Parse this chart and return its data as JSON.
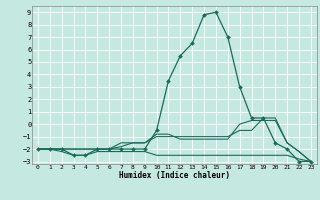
{
  "xlabel": "Humidex (Indice chaleur)",
  "bg_color": "#c5e8e0",
  "grid_color": "#ffffff",
  "line_color": "#1a6b5a",
  "xlim": [
    -0.5,
    23.5
  ],
  "ylim": [
    -3.2,
    9.5
  ],
  "xticks": [
    0,
    1,
    2,
    3,
    4,
    5,
    6,
    7,
    8,
    9,
    10,
    11,
    12,
    13,
    14,
    15,
    16,
    17,
    18,
    19,
    20,
    21,
    22,
    23
  ],
  "yticks": [
    -3,
    -2,
    -1,
    0,
    1,
    2,
    3,
    4,
    5,
    6,
    7,
    8,
    9
  ],
  "lines": [
    {
      "x": [
        0,
        1,
        2,
        3,
        4,
        5,
        6,
        7,
        8,
        9,
        10,
        11,
        12,
        13,
        14,
        15,
        16,
        17,
        18,
        19,
        20,
        21,
        22,
        23
      ],
      "y": [
        -2,
        -2,
        -2,
        -2.5,
        -2.5,
        -2,
        -2,
        -2,
        -2,
        -2,
        -0.5,
        3.5,
        5.5,
        6.5,
        8.8,
        9,
        7,
        3,
        0.5,
        0.5,
        -1.5,
        -2,
        -3,
        -3
      ],
      "has_markers": true
    },
    {
      "x": [
        0,
        1,
        2,
        3,
        4,
        5,
        6,
        7,
        8,
        9,
        10,
        11,
        12,
        13,
        14,
        15,
        16,
        17,
        18,
        19,
        20,
        21,
        22,
        23
      ],
      "y": [
        -2,
        -2,
        -2,
        -2,
        -2,
        -2,
        -2,
        -1.8,
        -1.5,
        -1.5,
        -0.8,
        -0.8,
        -1.2,
        -1.2,
        -1.2,
        -1.2,
        -1.2,
        0,
        0.3,
        0.3,
        0.3,
        -1.5,
        -2.2,
        -3
      ],
      "has_markers": false
    },
    {
      "x": [
        0,
        1,
        2,
        3,
        4,
        5,
        6,
        7,
        8,
        9,
        10,
        11,
        12,
        13,
        14,
        15,
        16,
        17,
        18,
        19,
        20,
        21,
        22,
        23
      ],
      "y": [
        -2,
        -2,
        -2.2,
        -2.5,
        -2.5,
        -2.2,
        -2.2,
        -2.2,
        -2.2,
        -2.2,
        -2.5,
        -2.5,
        -2.5,
        -2.5,
        -2.5,
        -2.5,
        -2.5,
        -2.5,
        -2.5,
        -2.5,
        -2.5,
        -2.5,
        -2.8,
        -3
      ],
      "has_markers": false
    },
    {
      "x": [
        0,
        1,
        2,
        3,
        4,
        5,
        6,
        7,
        8,
        9,
        10,
        11,
        12,
        13,
        14,
        15,
        16,
        17,
        18,
        19,
        20,
        21,
        22,
        23
      ],
      "y": [
        -2,
        -2,
        -2,
        -2,
        -2,
        -2,
        -2,
        -1.5,
        -1.5,
        -1.5,
        -1,
        -1,
        -1,
        -1,
        -1,
        -1,
        -1,
        -0.5,
        -0.5,
        0.5,
        0.5,
        -1.5,
        -2.2,
        -3
      ],
      "has_markers": false
    }
  ]
}
